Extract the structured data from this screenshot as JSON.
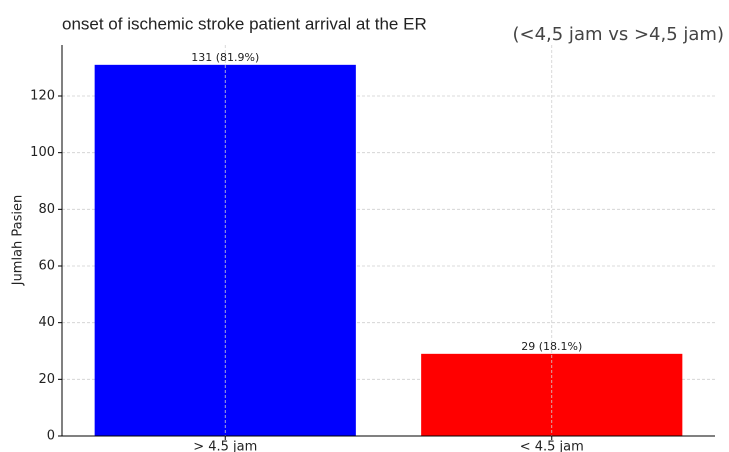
{
  "chart_data": {
    "type": "bar",
    "title": "onset of ischemic stroke patient arrival at the ER",
    "subtitle": "(<4,5 jam vs >4,5 jam)",
    "y_label": "Jumlah Pasien",
    "categories": [
      "> 4.5 jam",
      "< 4.5 jam"
    ],
    "values": [
      131,
      29
    ],
    "value_labels": [
      "131 (81.9%)",
      "29 (18.1%)"
    ],
    "colors": [
      "#0000ff",
      "#ff0000"
    ],
    "ylim": [
      0,
      138
    ],
    "yticks": [
      0,
      20,
      40,
      60,
      80,
      100,
      120
    ],
    "grid": true
  }
}
